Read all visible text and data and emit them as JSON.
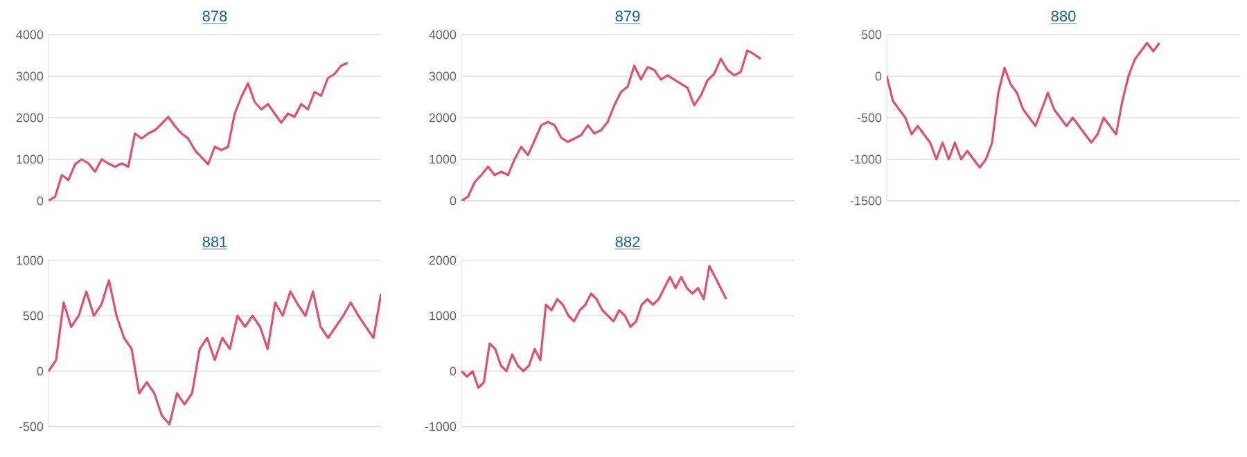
{
  "chart_data": [
    {
      "type": "line",
      "title": "878",
      "categories": [
        null,
        null,
        null,
        null,
        null,
        null,
        null,
        null,
        null,
        null,
        null,
        null,
        null,
        null,
        null,
        null,
        null,
        null,
        null,
        null,
        null,
        null,
        null,
        null,
        null,
        null,
        null,
        null,
        null,
        null,
        null,
        null,
        null,
        null,
        null,
        null,
        null,
        null,
        null,
        null,
        null,
        null,
        null,
        null,
        null,
        null,
        null,
        null,
        null,
        null,
        null
      ],
      "values": [
        0,
        100,
        620,
        500,
        880,
        1000,
        900,
        700,
        1000,
        900,
        820,
        900,
        820,
        1620,
        1500,
        1620,
        1700,
        1850,
        2020,
        1800,
        1620,
        1500,
        1220,
        1050,
        880,
        1300,
        1220,
        1300,
        2100,
        2500,
        2830,
        2380,
        2200,
        2330,
        2100,
        1880,
        2100,
        2020,
        2330,
        2200,
        2620,
        2530,
        2950,
        3050,
        3250,
        3320,
        null,
        null,
        null,
        null,
        null
      ],
      "color": "#e0506e",
      "ylim": [
        0,
        4000
      ],
      "yticks": [
        0,
        1000,
        2000,
        3000,
        4000
      ],
      "grid": "y"
    },
    {
      "type": "line",
      "title": "879",
      "categories": [
        null,
        null,
        null,
        null,
        null,
        null,
        null,
        null,
        null,
        null,
        null,
        null,
        null,
        null,
        null,
        null,
        null,
        null,
        null,
        null,
        null,
        null,
        null,
        null,
        null,
        null,
        null,
        null,
        null,
        null,
        null,
        null,
        null,
        null,
        null,
        null,
        null,
        null,
        null,
        null,
        null,
        null,
        null,
        null,
        null,
        null,
        null,
        null,
        null,
        null,
        null
      ],
      "values": [
        0,
        100,
        450,
        620,
        820,
        620,
        700,
        620,
        1000,
        1300,
        1100,
        1450,
        1820,
        1900,
        1820,
        1520,
        1420,
        1500,
        1580,
        1820,
        1620,
        1700,
        1900,
        2300,
        2620,
        2750,
        3250,
        2920,
        3220,
        3150,
        2920,
        3020,
        2920,
        2820,
        2720,
        2300,
        2530,
        2900,
        3050,
        3420,
        3150,
        3020,
        3100,
        3620,
        3530,
        3420,
        null,
        null,
        null,
        null,
        null
      ],
      "color": "#e0506e",
      "ylim": [
        0,
        4000
      ],
      "yticks": [
        0,
        1000,
        2000,
        3000,
        4000
      ],
      "grid": "y"
    },
    {
      "type": "line",
      "title": "880",
      "categories": [
        null,
        null,
        null,
        null,
        null,
        null,
        null,
        null,
        null,
        null,
        null,
        null,
        null,
        null,
        null,
        null,
        null,
        null,
        null,
        null,
        null,
        null,
        null,
        null,
        null,
        null,
        null,
        null,
        null,
        null,
        null,
        null,
        null,
        null,
        null,
        null,
        null,
        null,
        null,
        null,
        null,
        null,
        null,
        null,
        null,
        null,
        null,
        null,
        null,
        null,
        null,
        null,
        null,
        null,
        null,
        null,
        null,
        null
      ],
      "values": [
        0,
        -300,
        -400,
        -500,
        -700,
        -600,
        -700,
        -800,
        -1000,
        -800,
        -1000,
        -800,
        -1000,
        -900,
        -1000,
        -1100,
        -1000,
        -800,
        -200,
        100,
        -100,
        -200,
        -400,
        -500,
        -600,
        -400,
        -200,
        -400,
        -500,
        -600,
        -500,
        -600,
        -700,
        -800,
        -700,
        -500,
        -600,
        -700,
        -300,
        0,
        200,
        300,
        400,
        300,
        400,
        null,
        null,
        null,
        null,
        null,
        null,
        null,
        null,
        null,
        null,
        null,
        null,
        null
      ],
      "color": "#e0506e",
      "ylim": [
        -1500,
        500
      ],
      "yticks": [
        -1500,
        -1000,
        -500,
        0,
        500
      ],
      "grid": "y"
    },
    {
      "type": "line",
      "title": "881",
      "categories": [
        null,
        null,
        null,
        null,
        null,
        null,
        null,
        null,
        null,
        null,
        null,
        null,
        null,
        null,
        null,
        null,
        null,
        null,
        null,
        null,
        null,
        null,
        null,
        null,
        null,
        null,
        null,
        null,
        null,
        null,
        null,
        null,
        null,
        null,
        null,
        null,
        null,
        null,
        null,
        null,
        null,
        null,
        null,
        null,
        null
      ],
      "values": [
        0,
        100,
        620,
        400,
        500,
        720,
        500,
        600,
        820,
        500,
        300,
        200,
        -200,
        -100,
        -200,
        -400,
        -480,
        -200,
        -300,
        -200,
        200,
        300,
        100,
        300,
        200,
        500,
        400,
        500,
        400,
        200,
        620,
        500,
        720,
        600,
        500,
        720,
        400,
        300,
        400,
        500,
        620,
        500,
        400,
        300,
        700
      ],
      "color": "#e0506e",
      "ylim": [
        -500,
        1000
      ],
      "yticks": [
        -500,
        0,
        500,
        1000
      ],
      "grid": "y"
    },
    {
      "type": "line",
      "title": "882",
      "categories": [
        null,
        null,
        null,
        null,
        null,
        null,
        null,
        null,
        null,
        null,
        null,
        null,
        null,
        null,
        null,
        null,
        null,
        null,
        null,
        null,
        null,
        null,
        null,
        null,
        null,
        null,
        null,
        null,
        null,
        null,
        null,
        null,
        null,
        null,
        null,
        null,
        null,
        null,
        null,
        null,
        null,
        null,
        null,
        null,
        null,
        null,
        null,
        null,
        null,
        null,
        null,
        null,
        null,
        null,
        null,
        null,
        null,
        null,
        null,
        null
      ],
      "values": [
        0,
        -100,
        0,
        -300,
        -200,
        500,
        400,
        100,
        0,
        300,
        100,
        0,
        100,
        400,
        200,
        1200,
        1100,
        1300,
        1200,
        1000,
        900,
        1100,
        1200,
        1400,
        1300,
        1100,
        1000,
        900,
        1100,
        1000,
        800,
        900,
        1200,
        1300,
        1200,
        1300,
        1500,
        1700,
        1500,
        1700,
        1500,
        1400,
        1500,
        1300,
        1900,
        1700,
        1500,
        1300,
        null,
        null,
        null,
        null,
        null,
        null,
        null,
        null,
        null,
        null,
        null,
        null
      ],
      "color": "#e0506e",
      "ylim": [
        -1000,
        2000
      ],
      "yticks": [
        -1000,
        0,
        1000,
        2000
      ],
      "grid": "y"
    }
  ]
}
